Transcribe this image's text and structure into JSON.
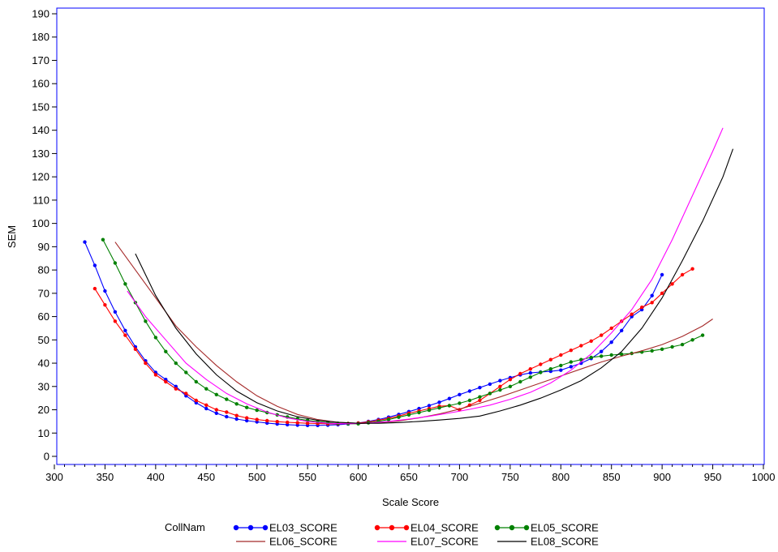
{
  "chart_data": {
    "type": "line",
    "title": "",
    "xlabel": "Scale Score",
    "ylabel": "SEM",
    "xlim": [
      300,
      1000
    ],
    "ylim": [
      0,
      190
    ],
    "x_ticks": [
      300,
      350,
      400,
      450,
      500,
      550,
      600,
      650,
      700,
      750,
      800,
      850,
      900,
      950,
      1000
    ],
    "y_ticks": [
      0,
      10,
      20,
      30,
      40,
      50,
      60,
      70,
      80,
      90,
      100,
      110,
      120,
      130,
      140,
      150,
      160,
      170,
      180,
      190
    ],
    "grid": false,
    "legend": {
      "title": "CollNam",
      "placement": "bottom"
    },
    "series": [
      {
        "name": "EL03_SCORE",
        "color": "#0000ff",
        "markers": true,
        "points": [
          [
            330,
            92
          ],
          [
            340,
            82
          ],
          [
            350,
            71
          ],
          [
            360,
            62
          ],
          [
            370,
            54
          ],
          [
            380,
            47
          ],
          [
            390,
            41
          ],
          [
            400,
            36
          ],
          [
            410,
            33
          ],
          [
            420,
            30
          ],
          [
            430,
            26
          ],
          [
            440,
            23
          ],
          [
            450,
            20.5
          ],
          [
            460,
            18.5
          ],
          [
            470,
            17
          ],
          [
            480,
            16
          ],
          [
            490,
            15.3
          ],
          [
            500,
            14.8
          ],
          [
            510,
            14.3
          ],
          [
            520,
            13.9
          ],
          [
            530,
            13.6
          ],
          [
            540,
            13.4
          ],
          [
            550,
            13.3
          ],
          [
            560,
            13.3
          ],
          [
            570,
            13.4
          ],
          [
            580,
            13.6
          ],
          [
            590,
            13.9
          ],
          [
            600,
            14.3
          ],
          [
            610,
            15
          ],
          [
            620,
            15.8
          ],
          [
            630,
            16.8
          ],
          [
            640,
            18
          ],
          [
            650,
            19.2
          ],
          [
            660,
            20.5
          ],
          [
            670,
            21.8
          ],
          [
            680,
            23.2
          ],
          [
            690,
            24.8
          ],
          [
            700,
            26.5
          ],
          [
            710,
            28
          ],
          [
            720,
            29.5
          ],
          [
            730,
            31
          ],
          [
            740,
            32.5
          ],
          [
            750,
            33.8
          ],
          [
            760,
            35
          ],
          [
            770,
            35.8
          ],
          [
            780,
            36.2
          ],
          [
            790,
            36.5
          ],
          [
            800,
            37
          ],
          [
            810,
            38.5
          ],
          [
            820,
            40
          ],
          [
            830,
            42
          ],
          [
            840,
            45
          ],
          [
            850,
            49
          ],
          [
            860,
            54
          ],
          [
            870,
            60
          ],
          [
            880,
            63
          ],
          [
            890,
            69
          ],
          [
            900,
            78
          ]
        ]
      },
      {
        "name": "EL04_SCORE",
        "color": "#ff0000",
        "markers": true,
        "points": [
          [
            340,
            72
          ],
          [
            350,
            65
          ],
          [
            360,
            58
          ],
          [
            370,
            52
          ],
          [
            380,
            46
          ],
          [
            390,
            40
          ],
          [
            400,
            35
          ],
          [
            410,
            32
          ],
          [
            420,
            29
          ],
          [
            430,
            27
          ],
          [
            440,
            24
          ],
          [
            450,
            22
          ],
          [
            460,
            20
          ],
          [
            470,
            19
          ],
          [
            480,
            17.5
          ],
          [
            490,
            16.5
          ],
          [
            500,
            15.8
          ],
          [
            510,
            15.3
          ],
          [
            520,
            14.9
          ],
          [
            530,
            14.6
          ],
          [
            540,
            14.4
          ],
          [
            550,
            14.2
          ],
          [
            560,
            14.1
          ],
          [
            570,
            14
          ],
          [
            580,
            14
          ],
          [
            590,
            14.1
          ],
          [
            600,
            14.3
          ],
          [
            610,
            14.8
          ],
          [
            620,
            15.5
          ],
          [
            630,
            16.3
          ],
          [
            640,
            17.3
          ],
          [
            650,
            18.5
          ],
          [
            660,
            19.5
          ],
          [
            670,
            20.5
          ],
          [
            680,
            21.5
          ],
          [
            690,
            21.8
          ],
          [
            700,
            20
          ],
          [
            710,
            22
          ],
          [
            720,
            24
          ],
          [
            730,
            27
          ],
          [
            740,
            30
          ],
          [
            750,
            33
          ],
          [
            760,
            35.5
          ],
          [
            770,
            37.5
          ],
          [
            780,
            39.5
          ],
          [
            790,
            41.5
          ],
          [
            800,
            43.5
          ],
          [
            810,
            45.5
          ],
          [
            820,
            47.5
          ],
          [
            830,
            49.5
          ],
          [
            840,
            52
          ],
          [
            850,
            55
          ],
          [
            860,
            58
          ],
          [
            870,
            61
          ],
          [
            880,
            64
          ],
          [
            890,
            66
          ],
          [
            900,
            70
          ],
          [
            910,
            74
          ],
          [
            920,
            78
          ],
          [
            930,
            80.5
          ]
        ]
      },
      {
        "name": "EL05_SCORE",
        "color": "#008000",
        "markers": true,
        "points": [
          [
            348,
            93
          ],
          [
            360,
            83
          ],
          [
            370,
            74
          ],
          [
            380,
            66
          ],
          [
            390,
            58
          ],
          [
            400,
            51
          ],
          [
            410,
            45
          ],
          [
            420,
            40
          ],
          [
            430,
            36
          ],
          [
            440,
            32
          ],
          [
            450,
            29
          ],
          [
            460,
            26.5
          ],
          [
            470,
            24.5
          ],
          [
            480,
            22.5
          ],
          [
            490,
            21
          ],
          [
            500,
            19.8
          ],
          [
            510,
            18.8
          ],
          [
            520,
            17.8
          ],
          [
            530,
            16.9
          ],
          [
            540,
            16.1
          ],
          [
            550,
            15.4
          ],
          [
            560,
            14.9
          ],
          [
            570,
            14.5
          ],
          [
            580,
            14.2
          ],
          [
            590,
            14
          ],
          [
            600,
            14
          ],
          [
            610,
            14.4
          ],
          [
            620,
            15
          ],
          [
            630,
            15.8
          ],
          [
            640,
            16.8
          ],
          [
            650,
            17.8
          ],
          [
            660,
            18.8
          ],
          [
            670,
            19.8
          ],
          [
            680,
            20.8
          ],
          [
            690,
            21.8
          ],
          [
            700,
            22.8
          ],
          [
            710,
            24
          ],
          [
            720,
            25.5
          ],
          [
            730,
            27
          ],
          [
            740,
            28.5
          ],
          [
            750,
            30
          ],
          [
            760,
            32
          ],
          [
            770,
            34
          ],
          [
            780,
            36
          ],
          [
            790,
            37.5
          ],
          [
            800,
            39
          ],
          [
            810,
            40.5
          ],
          [
            820,
            41.5
          ],
          [
            830,
            42.5
          ],
          [
            840,
            43
          ],
          [
            850,
            43.5
          ],
          [
            860,
            43.8
          ],
          [
            870,
            44.2
          ],
          [
            880,
            44.8
          ],
          [
            890,
            45.3
          ],
          [
            900,
            46
          ],
          [
            910,
            47
          ],
          [
            920,
            48
          ],
          [
            930,
            50
          ],
          [
            940,
            52
          ]
        ]
      },
      {
        "name": "EL06_SCORE",
        "color": "#a52a2a",
        "markers": false,
        "points": [
          [
            360,
            92
          ],
          [
            380,
            80
          ],
          [
            400,
            68
          ],
          [
            420,
            56
          ],
          [
            440,
            47
          ],
          [
            460,
            39
          ],
          [
            480,
            32
          ],
          [
            500,
            26
          ],
          [
            520,
            21.5
          ],
          [
            540,
            18
          ],
          [
            560,
            15.8
          ],
          [
            580,
            14.6
          ],
          [
            600,
            14.2
          ],
          [
            620,
            14.4
          ],
          [
            640,
            15.2
          ],
          [
            660,
            16.5
          ],
          [
            680,
            18.2
          ],
          [
            700,
            20.3
          ],
          [
            720,
            22.8
          ],
          [
            740,
            25.5
          ],
          [
            760,
            28.5
          ],
          [
            780,
            31.5
          ],
          [
            800,
            34.5
          ],
          [
            820,
            37.5
          ],
          [
            840,
            40.5
          ],
          [
            860,
            43
          ],
          [
            880,
            45.3
          ],
          [
            900,
            48
          ],
          [
            920,
            51.5
          ],
          [
            940,
            56
          ],
          [
            950,
            59
          ]
        ]
      },
      {
        "name": "EL07_SCORE",
        "color": "#ff00ff",
        "markers": false,
        "points": [
          [
            372,
            71
          ],
          [
            390,
            60
          ],
          [
            410,
            50
          ],
          [
            430,
            40
          ],
          [
            450,
            33
          ],
          [
            470,
            27
          ],
          [
            490,
            22.5
          ],
          [
            510,
            19
          ],
          [
            530,
            16.5
          ],
          [
            550,
            15
          ],
          [
            570,
            14.2
          ],
          [
            590,
            14
          ],
          [
            610,
            14.3
          ],
          [
            630,
            15
          ],
          [
            650,
            16
          ],
          [
            670,
            17.2
          ],
          [
            690,
            18.6
          ],
          [
            710,
            20.2
          ],
          [
            730,
            22
          ],
          [
            750,
            24.5
          ],
          [
            770,
            27.5
          ],
          [
            790,
            31.5
          ],
          [
            810,
            37
          ],
          [
            830,
            44
          ],
          [
            850,
            53
          ],
          [
            870,
            63
          ],
          [
            890,
            76
          ],
          [
            910,
            93
          ],
          [
            930,
            112
          ],
          [
            950,
            131
          ],
          [
            960,
            141
          ]
        ]
      },
      {
        "name": "EL08_SCORE",
        "color": "#000000",
        "markers": false,
        "points": [
          [
            380,
            87
          ],
          [
            400,
            69
          ],
          [
            420,
            55
          ],
          [
            440,
            44
          ],
          [
            460,
            35
          ],
          [
            480,
            28
          ],
          [
            500,
            23
          ],
          [
            520,
            19.5
          ],
          [
            540,
            17
          ],
          [
            560,
            15.5
          ],
          [
            580,
            14.6
          ],
          [
            600,
            14.2
          ],
          [
            620,
            14.2
          ],
          [
            640,
            14.5
          ],
          [
            660,
            15
          ],
          [
            680,
            15.6
          ],
          [
            700,
            16.3
          ],
          [
            720,
            17.3
          ],
          [
            740,
            19.5
          ],
          [
            760,
            22
          ],
          [
            780,
            25
          ],
          [
            800,
            28.5
          ],
          [
            820,
            32.5
          ],
          [
            840,
            38
          ],
          [
            860,
            45
          ],
          [
            880,
            55
          ],
          [
            900,
            68
          ],
          [
            920,
            84
          ],
          [
            940,
            101
          ],
          [
            960,
            120
          ],
          [
            970,
            132
          ]
        ]
      }
    ]
  }
}
